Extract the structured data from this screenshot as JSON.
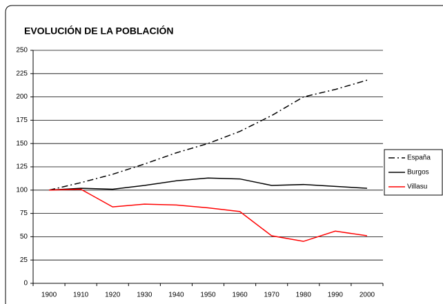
{
  "chart_data": {
    "type": "line",
    "title": "EVOLUCIÓN DE LA POBLACIÓN",
    "categories": [
      "1900",
      "1910",
      "1920",
      "1930",
      "1940",
      "1950",
      "1960",
      "1970",
      "1980",
      "1990",
      "2000"
    ],
    "series": [
      {
        "name": "España",
        "color": "#000000",
        "style": "dash-dot",
        "values": [
          100,
          108,
          117,
          128,
          140,
          150,
          163,
          180,
          200,
          208,
          218
        ]
      },
      {
        "name": "Burgos",
        "color": "#000000",
        "style": "solid",
        "values": [
          100,
          102,
          101,
          105,
          110,
          113,
          112,
          105,
          106,
          104,
          102
        ]
      },
      {
        "name": "Villasu",
        "color": "#ff0000",
        "style": "solid",
        "values": [
          100,
          101,
          82,
          85,
          84,
          81,
          77,
          51,
          45,
          56,
          51
        ]
      }
    ],
    "ylim": [
      0,
      250
    ],
    "yticks": [
      0,
      25,
      50,
      75,
      100,
      125,
      150,
      175,
      200,
      225,
      250
    ],
    "grid": true,
    "legend": "right"
  }
}
